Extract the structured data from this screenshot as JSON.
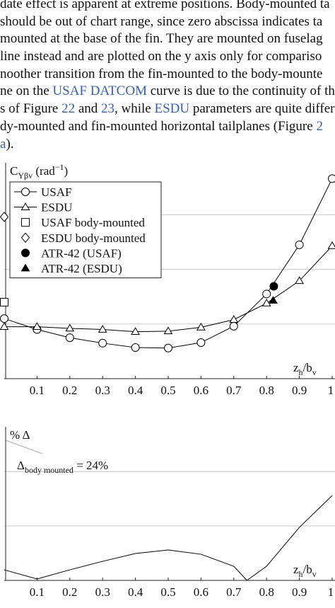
{
  "paragraph": [
    [
      {
        "text": "date effect is apparent at extreme positions. Body-mounted ta"
      }
    ],
    [
      {
        "text": "should be out of chart range, since zero abscissa indicates ta"
      }
    ],
    [
      {
        "text": "mounted at the base of the fin. They are mounted on fuselag"
      }
    ],
    [
      {
        "text": "line instead and are plotted on the y axis only for compariso"
      }
    ],
    [
      {
        "text": "noother transition from the fin-mounted to the body-mounte"
      }
    ],
    [
      {
        "text": "ne on the "
      },
      {
        "text": "USAF DATCOM",
        "link": true
      },
      {
        "text": " curve is due to the continuity of th"
      }
    ],
    [
      {
        "text": "s of Figure "
      },
      {
        "text": "22",
        "link": true
      },
      {
        "text": " and "
      },
      {
        "text": "23",
        "link": true
      },
      {
        "text": ", while "
      },
      {
        "text": "ESDU",
        "link": true
      },
      {
        "text": " parameters are quite differen"
      }
    ],
    [
      {
        "text": "dy-mounted and fin-mounted horizontal tailplanes (Figure "
      },
      {
        "text": "2",
        "link": true
      }
    ],
    [
      {
        "text": "a",
        "link": true
      },
      {
        "text": ")."
      }
    ]
  ],
  "chart_data": [
    {
      "type": "line",
      "ylabel": [
        {
          "text": "C"
        },
        {
          "text": "Yβv",
          "shift": "sub"
        },
        {
          "text": " (rad"
        },
        {
          "text": "−1",
          "shift": "sup"
        },
        {
          "text": ")"
        }
      ],
      "xlabel": [
        {
          "text": "z"
        },
        {
          "text": "h",
          "shift": "sub"
        },
        {
          "text": "/b"
        },
        {
          "text": "v",
          "shift": "sub"
        }
      ],
      "xlim": [
        0,
        1
      ],
      "xticks": [
        0.1,
        0.2,
        0.3,
        0.4,
        0.5,
        0.6,
        0.7,
        0.8,
        0.9,
        1
      ],
      "ylim": [
        0,
        3.95
      ],
      "grid_y": [
        1,
        2,
        3
      ],
      "legend": "top-left",
      "series": [
        {
          "name": "USAF",
          "marker": "circle",
          "color": "#000000",
          "line": true,
          "x": [
            0,
            0.1,
            0.2,
            0.3,
            0.4,
            0.5,
            0.6,
            0.7,
            0.8,
            0.9,
            1
          ],
          "values": [
            1.1,
            0.9,
            0.75,
            0.65,
            0.57,
            0.56,
            0.66,
            0.96,
            1.55,
            2.45,
            3.66
          ]
        },
        {
          "name": "ESDU",
          "marker": "triangle",
          "color": "#000000",
          "line": true,
          "x": [
            0,
            0.1,
            0.2,
            0.3,
            0.4,
            0.5,
            0.6,
            0.7,
            0.8,
            0.9,
            1
          ],
          "values": [
            0.95,
            0.95,
            0.92,
            0.9,
            0.86,
            0.87,
            0.94,
            1.08,
            1.38,
            1.79,
            2.43
          ]
        },
        {
          "name": "USAF body-mounted",
          "marker": "square",
          "color": "#000000",
          "line": false,
          "x": [
            0
          ],
          "values": [
            1.4
          ]
        },
        {
          "name": "ESDU body-mounted",
          "marker": "diamond",
          "color": "#000000",
          "line": false,
          "x": [
            0
          ],
          "values": [
            2.96
          ]
        },
        {
          "name": "ATR-42 (USAF)",
          "marker": "circle-filled",
          "color": "#000000",
          "line": false,
          "x": [
            0.822
          ],
          "values": [
            1.69
          ]
        },
        {
          "name": "ATR-42 (ESDU)",
          "marker": "triangle-filled",
          "color": "#000000",
          "line": false,
          "x": [
            0.82
          ],
          "values": [
            1.43
          ]
        }
      ]
    },
    {
      "type": "line",
      "ylabel": [
        {
          "text": "% Δ"
        }
      ],
      "xlabel": [
        {
          "text": "z"
        },
        {
          "text": "h",
          "shift": "sub"
        },
        {
          "text": "/b"
        },
        {
          "text": "v",
          "shift": "sub"
        }
      ],
      "annotation": [
        {
          "text": "Δ"
        },
        {
          "text": "body mounted",
          "shift": "sub"
        },
        {
          "text": " = 24%"
        }
      ],
      "xlim": [
        0,
        1
      ],
      "xticks": [
        0.1,
        0.2,
        0.3,
        0.4,
        0.5,
        0.6,
        0.7,
        0.8,
        0.9,
        1
      ],
      "ylim": [
        0,
        14.1
      ],
      "grid_y": [
        5,
        10
      ],
      "series": [
        {
          "color": "#000000",
          "line": true,
          "marker": "none",
          "x": [
            0,
            0.1,
            0.2,
            0.3,
            0.4,
            0.5,
            0.6,
            0.7,
            0.74,
            0.8,
            0.9,
            1
          ],
          "values": [
            0.97,
            0.13,
            0.97,
            1.75,
            2.47,
            2.79,
            2.4,
            1.3,
            0,
            1.3,
            4.87,
            7.79
          ]
        }
      ]
    }
  ]
}
